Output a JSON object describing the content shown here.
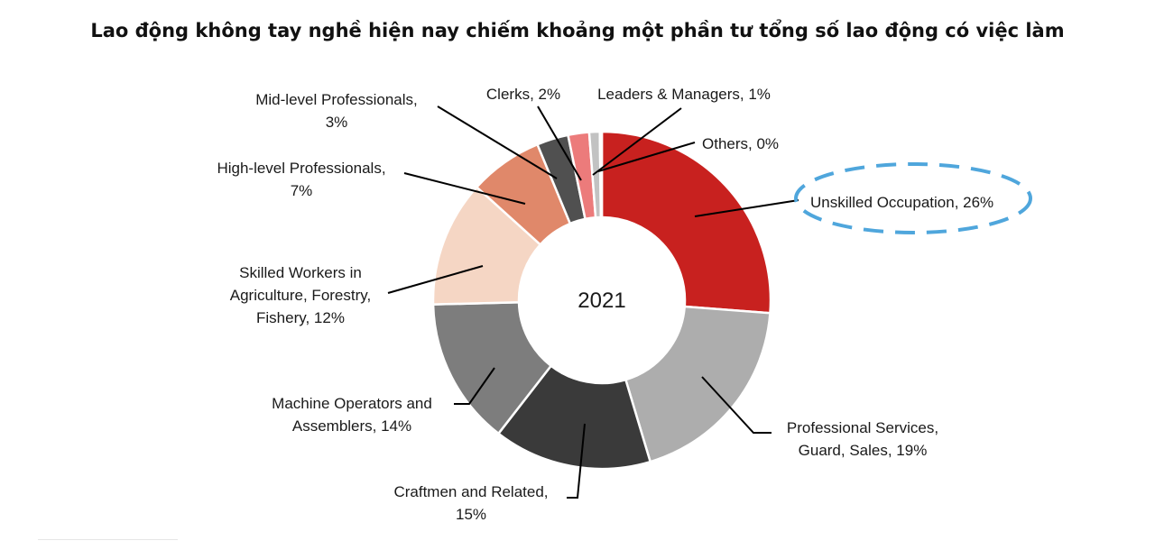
{
  "title": "Lao động không tay nghề hiện nay chiếm khoảng một phần tư tổng số lao động có việc làm",
  "chart_data": {
    "type": "pie",
    "variant": "donut",
    "center_label": "2021",
    "highlighted": "Unskilled Occupation",
    "highlight_color": "#4fa6dc",
    "slices": [
      {
        "name": "Unskilled Occupation",
        "value": 26,
        "color": "#c8211f",
        "label_lines": [
          "Unskilled Occupation, 26%"
        ]
      },
      {
        "name": "Professional Services, Guard, Sales",
        "value": 19,
        "color": "#adadad",
        "label_lines": [
          "Professional Services,",
          "Guard,  Sales, 19%"
        ]
      },
      {
        "name": "Craftmen and Related",
        "value": 15,
        "color": "#3a3a3a",
        "label_lines": [
          "Craftmen  and Related,",
          "15%"
        ]
      },
      {
        "name": "Machine Operators and Assemblers",
        "value": 14,
        "color": "#7d7d7d",
        "label_lines": [
          "Machine Operators  and",
          "Assemblers, 14%"
        ]
      },
      {
        "name": "Skilled Workers in Agriculture, Forestry, Fishery",
        "value": 12,
        "color": "#f5d6c4",
        "label_lines": [
          "Skilled Workers  in",
          "Agriculture,  Forestry,",
          "Fishery, 12%"
        ]
      },
      {
        "name": "High-level Professionals",
        "value": 7,
        "color": "#e0886a",
        "label_lines": [
          "High-level Professionals,",
          "7%"
        ]
      },
      {
        "name": "Mid-level Professionals",
        "value": 3,
        "color": "#505050",
        "label_lines": [
          "Mid-level Professionals,",
          "3%"
        ]
      },
      {
        "name": "Clerks",
        "value": 2,
        "color": "#ec7b7b",
        "label_lines": [
          "Clerks, 2%"
        ]
      },
      {
        "name": "Leaders & Managers",
        "value": 1,
        "color": "#c2c2c2",
        "label_lines": [
          "Leaders  & Managers,  1%"
        ]
      },
      {
        "name": "Others",
        "value": 0,
        "color": "#f0dede",
        "label_lines": [
          "Others, 0%"
        ]
      }
    ]
  }
}
